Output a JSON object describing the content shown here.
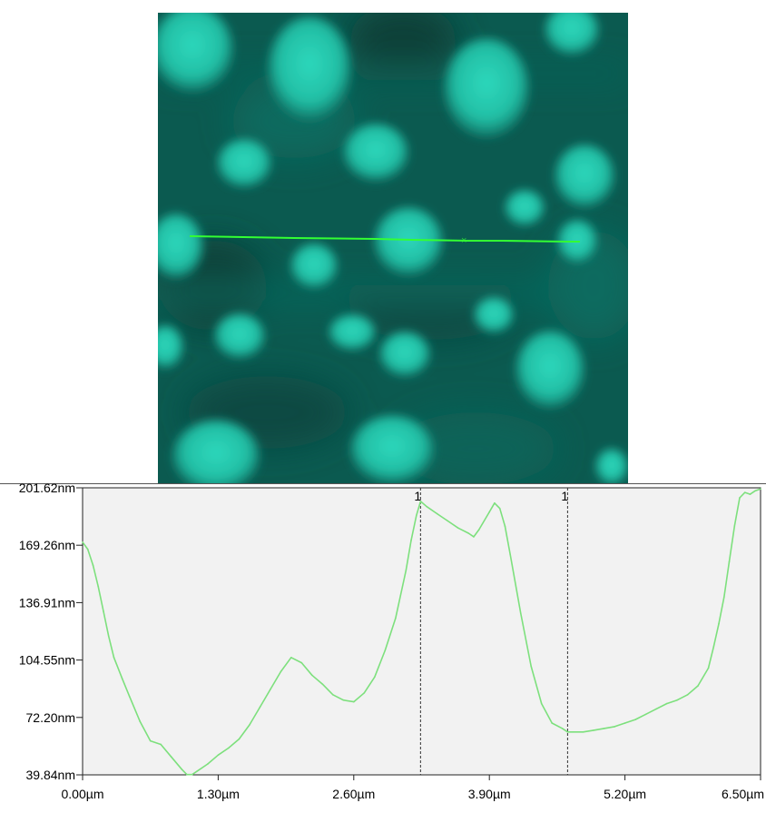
{
  "chart_data": {
    "type": "line",
    "title": "",
    "xlabel": "",
    "ylabel": "",
    "xlim": [
      0.0,
      6.5
    ],
    "ylim": [
      39.84,
      201.62
    ],
    "x_ticks": [
      "0.00µm",
      "1.30µm",
      "2.60µm",
      "3.90µm",
      "5.20µm",
      "6.50µm"
    ],
    "y_ticks": [
      "201.62nm",
      "169.26nm",
      "136.91nm",
      "104.55nm",
      "72.20nm",
      "39.84nm"
    ],
    "grid": false,
    "background": "#f2f2f2",
    "line_color": "#7de07d",
    "cursor_lines": [
      {
        "x": 3.24,
        "label": "1"
      },
      {
        "x": 4.65,
        "label": "1"
      }
    ],
    "series": [
      {
        "x": [
          0.0,
          0.05,
          0.1,
          0.15,
          0.2,
          0.25,
          0.3,
          0.38,
          0.45,
          0.55,
          0.65,
          0.75,
          0.85,
          0.95,
          1.0,
          1.05,
          1.1,
          1.2,
          1.3,
          1.4,
          1.5,
          1.6,
          1.7,
          1.8,
          1.9,
          2.0,
          2.1,
          2.2,
          2.3,
          2.4,
          2.5,
          2.6,
          2.7,
          2.8,
          2.9,
          3.0,
          3.1,
          3.15,
          3.2,
          3.24,
          3.3,
          3.4,
          3.5,
          3.6,
          3.7,
          3.75,
          3.8,
          3.9,
          3.95,
          4.0,
          4.05,
          4.1,
          4.2,
          4.3,
          4.4,
          4.5,
          4.6,
          4.65,
          4.7,
          4.8,
          4.9,
          5.0,
          5.1,
          5.2,
          5.3,
          5.4,
          5.5,
          5.6,
          5.7,
          5.8,
          5.9,
          6.0,
          6.05,
          6.1,
          6.15,
          6.2,
          6.25,
          6.3,
          6.35,
          6.4,
          6.45,
          6.5
        ],
        "y": [
          171,
          167,
          158,
          146,
          132,
          118,
          106,
          94,
          84,
          70,
          59,
          57,
          50,
          43,
          40,
          40,
          42,
          46,
          51,
          55,
          60,
          68,
          78,
          88,
          98,
          106,
          103,
          96,
          91,
          85,
          82,
          81,
          86,
          95,
          110,
          128,
          155,
          172,
          186,
          194,
          191,
          187,
          183,
          179,
          176,
          174,
          178,
          188,
          193,
          190,
          180,
          164,
          131,
          101,
          80,
          69,
          66,
          64,
          64,
          64,
          65,
          66,
          67,
          69,
          71,
          74,
          77,
          80,
          82,
          85,
          90,
          100,
          112,
          125,
          140,
          160,
          180,
          196,
          199,
          198,
          200,
          201
        ]
      }
    ]
  }
}
